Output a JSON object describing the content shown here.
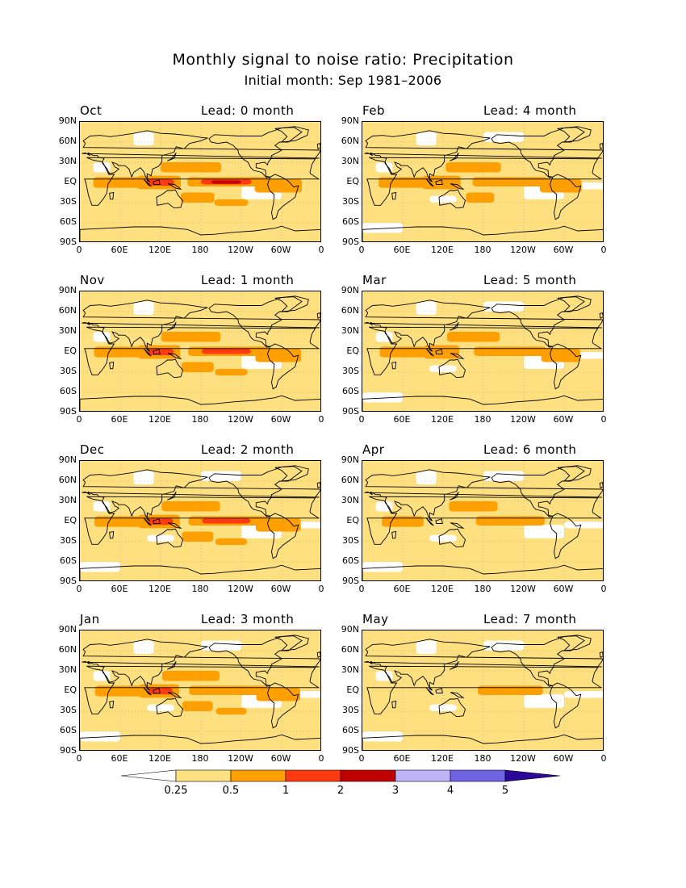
{
  "title": "Monthly signal to noise ratio: Precipitation",
  "subtitle": "Initial month: Sep 1981–2006",
  "panels": [
    {
      "month": "Oct",
      "lead": "Lead: 0 month",
      "strength": 1.0
    },
    {
      "month": "Feb",
      "lead": "Lead: 4 month",
      "strength": 0.8
    },
    {
      "month": "Nov",
      "lead": "Lead: 1 month",
      "strength": 0.95
    },
    {
      "month": "Mar",
      "lead": "Lead: 5 month",
      "strength": 0.7
    },
    {
      "month": "Dec",
      "lead": "Lead: 2 month",
      "strength": 0.92
    },
    {
      "month": "Apr",
      "lead": "Lead: 6 month",
      "strength": 0.55
    },
    {
      "month": "Jan",
      "lead": "Lead: 3 month",
      "strength": 0.88
    },
    {
      "month": "May",
      "lead": "Lead: 7 month",
      "strength": 0.42
    }
  ],
  "lat_labels": [
    "90N",
    "60N",
    "30N",
    "EQ",
    "30S",
    "60S",
    "90S"
  ],
  "lon_labels": [
    "0",
    "60E",
    "120E",
    "180",
    "120W",
    "60W",
    "0"
  ],
  "colorbar": {
    "colors": [
      "#ffffff",
      "#ffe080",
      "#ffa000",
      "#ff3a10",
      "#c00000",
      "#c0b4f8",
      "#7062e0",
      "#2a0898"
    ],
    "labels": [
      "0.25",
      "0.5",
      "1",
      "2",
      "3",
      "4",
      "5"
    ]
  }
}
